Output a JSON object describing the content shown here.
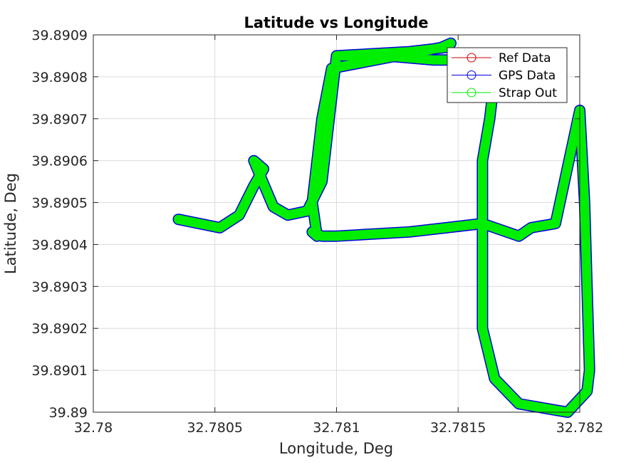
{
  "chart_data": {
    "type": "line",
    "title": "Latitude vs Longitude",
    "xlabel": "Longitude, Deg",
    "ylabel": "Latitude, Deg",
    "xlim": [
      32.78,
      32.782
    ],
    "ylim": [
      39.89,
      39.8909
    ],
    "grid": true,
    "legend_position": "top-right",
    "x_ticks": [
      32.78,
      32.7805,
      32.781,
      32.7815,
      32.782
    ],
    "x_tick_labels": [
      "32.78",
      "32.7805",
      "32.781",
      "32.7815",
      "32.782"
    ],
    "y_ticks": [
      39.89,
      39.8901,
      39.8902,
      39.8903,
      39.8904,
      39.8905,
      39.8906,
      39.8907,
      39.8908,
      39.8909
    ],
    "y_tick_labels": [
      "39.89",
      "39.8901",
      "39.8902",
      "39.8903",
      "39.8904",
      "39.8905",
      "39.8906",
      "39.8907",
      "39.8908",
      "39.8909"
    ],
    "series": [
      {
        "name": "Ref Data",
        "color": "#cc0000",
        "marker": "circle",
        "x": [
          32.78035,
          32.78052,
          32.7806,
          32.78066,
          32.7807,
          32.78066,
          32.78074,
          32.7808,
          32.78088,
          32.78094,
          32.781,
          32.7813,
          32.78145,
          32.78147,
          32.78143,
          32.78098,
          32.78094,
          32.7809,
          32.78092,
          32.7809,
          32.78094,
          32.781,
          32.7813,
          32.7816,
          32.78175,
          32.7818,
          32.7819,
          32.782,
          32.78202,
          32.78203,
          32.78204,
          32.78203,
          32.78195,
          32.78175,
          32.78165,
          32.7816,
          32.7816,
          32.7816,
          32.78163,
          32.78165,
          32.7816,
          32.7814,
          32.7812,
          32.781
        ],
        "y": [
          39.89046,
          39.89044,
          39.89047,
          39.89054,
          39.89058,
          39.8906,
          39.89049,
          39.89047,
          39.89048,
          39.89055,
          39.89085,
          39.89086,
          39.89087,
          39.89088,
          39.89087,
          39.89082,
          39.8907,
          39.8905,
          39.89042,
          39.89043,
          39.89042,
          39.89042,
          39.89043,
          39.89045,
          39.89042,
          39.89044,
          39.89045,
          39.89072,
          39.8905,
          39.8903,
          39.8901,
          39.89005,
          39.89,
          39.89002,
          39.89008,
          39.8902,
          39.8904,
          39.8906,
          39.8907,
          39.8908,
          39.89084,
          39.89084,
          39.89085,
          39.89085
        ],
        "style_order": 0
      },
      {
        "name": "GPS Data",
        "color": "#0000dd",
        "marker": "circle",
        "x": [
          32.78035,
          32.78052,
          32.7806,
          32.78066,
          32.7807,
          32.78066,
          32.78074,
          32.7808,
          32.78088,
          32.78094,
          32.781,
          32.7813,
          32.78145,
          32.78147,
          32.78143,
          32.78098,
          32.78094,
          32.7809,
          32.78092,
          32.7809,
          32.78094,
          32.781,
          32.7813,
          32.7816,
          32.78175,
          32.7818,
          32.7819,
          32.782,
          32.78202,
          32.78203,
          32.78204,
          32.78203,
          32.78195,
          32.78175,
          32.78165,
          32.7816,
          32.7816,
          32.7816,
          32.78163,
          32.78165,
          32.7816,
          32.7814,
          32.7812,
          32.781
        ],
        "y": [
          39.89046,
          39.89044,
          39.89047,
          39.89054,
          39.89058,
          39.8906,
          39.89049,
          39.89047,
          39.89048,
          39.89055,
          39.89085,
          39.89086,
          39.89087,
          39.89088,
          39.89087,
          39.89082,
          39.8907,
          39.8905,
          39.89042,
          39.89043,
          39.89042,
          39.89042,
          39.89043,
          39.89045,
          39.89042,
          39.89044,
          39.89045,
          39.89072,
          39.8905,
          39.8903,
          39.8901,
          39.89005,
          39.89,
          39.89002,
          39.89008,
          39.8902,
          39.8904,
          39.8906,
          39.8907,
          39.8908,
          39.89084,
          39.89084,
          39.89085,
          39.89085
        ]
      },
      {
        "name": "Strap Out",
        "color": "#00ee00",
        "marker": "circle",
        "x": [
          32.78035,
          32.78052,
          32.7806,
          32.78066,
          32.7807,
          32.78066,
          32.78074,
          32.7808,
          32.78088,
          32.78094,
          32.781,
          32.7813,
          32.78145,
          32.78147,
          32.78143,
          32.78098,
          32.78094,
          32.7809,
          32.78092,
          32.7809,
          32.78094,
          32.781,
          32.7813,
          32.7816,
          32.78175,
          32.7818,
          32.7819,
          32.782,
          32.78202,
          32.78203,
          32.78204,
          32.78203,
          32.78195,
          32.78175,
          32.78165,
          32.7816,
          32.7816,
          32.7816,
          32.78163,
          32.78165,
          32.7816,
          32.7814,
          32.7812,
          32.781
        ],
        "y": [
          39.89046,
          39.89044,
          39.89047,
          39.89054,
          39.89058,
          39.8906,
          39.89049,
          39.89047,
          39.89048,
          39.89055,
          39.89085,
          39.89086,
          39.89087,
          39.89088,
          39.89087,
          39.89082,
          39.8907,
          39.8905,
          39.89042,
          39.89043,
          39.89042,
          39.89042,
          39.89043,
          39.89045,
          39.89042,
          39.89044,
          39.89045,
          39.89072,
          39.8905,
          39.8903,
          39.8901,
          39.89005,
          39.89,
          39.89002,
          39.89008,
          39.8902,
          39.8904,
          39.8906,
          39.8907,
          39.8908,
          39.89084,
          39.89084,
          39.89085,
          39.89085
        ]
      }
    ]
  }
}
